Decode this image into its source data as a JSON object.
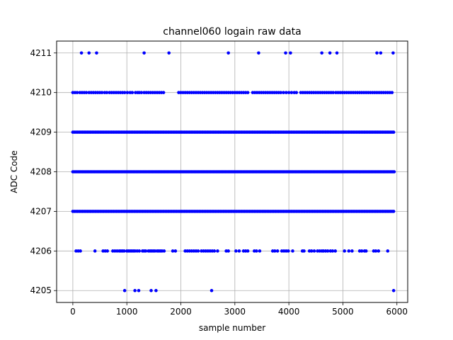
{
  "chart_data": {
    "type": "scatter",
    "title": "channel060 logain raw data",
    "xlabel": "sample number",
    "ylabel": "ADC Code",
    "xlim": [
      -300,
      6200
    ],
    "ylim": [
      4204.7,
      4211.3
    ],
    "xticks": [
      0,
      1000,
      2000,
      3000,
      4000,
      5000,
      6000
    ],
    "xtick_labels": [
      "0",
      "1000",
      "2000",
      "3000",
      "4000",
      "5000",
      "6000"
    ],
    "yticks": [
      4205,
      4206,
      4207,
      4208,
      4209,
      4210,
      4211
    ],
    "ytick_labels": [
      "4205",
      "4206",
      "4207",
      "4208",
      "4209",
      "4210",
      "4211"
    ],
    "grid": true,
    "marker_color": "#0000ff",
    "levels": [
      {
        "y": 4211,
        "x": [
          160,
          300,
          440,
          1320,
          1780,
          2880,
          3440,
          3940,
          4030,
          4610,
          4760,
          4890,
          5630,
          5700,
          5930
        ]
      },
      {
        "y": 4210,
        "x": [
          0,
          40,
          80,
          130,
          170,
          210,
          250,
          300,
          340,
          380,
          420,
          460,
          500,
          540,
          590,
          630,
          680,
          720,
          760,
          800,
          840,
          880,
          920,
          960,
          1010,
          1060,
          1100,
          1160,
          1200,
          1230,
          1270,
          1320,
          1360,
          1400,
          1440,
          1480,
          1520,
          1560,
          1600,
          1640,
          1680,
          1960,
          2000,
          2040,
          2080,
          2120,
          2160,
          2200,
          2240,
          2280,
          2320,
          2360,
          2400,
          2440,
          2480,
          2520,
          2560,
          2600,
          2640,
          2680,
          2720,
          2760,
          2800,
          2840,
          2880,
          2920,
          2960,
          3000,
          3040,
          3080,
          3120,
          3160,
          3200,
          3240,
          3330,
          3370,
          3410,
          3450,
          3490,
          3530,
          3570,
          3610,
          3650,
          3690,
          3730,
          3770,
          3810,
          3850,
          3900,
          3950,
          4000,
          4050,
          4100,
          4140,
          4220,
          4260,
          4300,
          4340,
          4380,
          4420,
          4460,
          4500,
          4540,
          4580,
          4620,
          4660,
          4700,
          4740,
          4780,
          4820,
          4870,
          4910,
          4950,
          4990,
          5030,
          5070,
          5110,
          5150,
          5190,
          5230,
          5270,
          5310,
          5350,
          5390,
          5430,
          5470,
          5510,
          5550,
          5590,
          5630,
          5670,
          5710,
          5750,
          5790,
          5830,
          5870,
          5910
        ]
      },
      {
        "y": 4209,
        "x": [
          0,
          30,
          60,
          90,
          120,
          150,
          180,
          210,
          240,
          270,
          300,
          330,
          360,
          390,
          420,
          450,
          480,
          510,
          540,
          570,
          600,
          630,
          660,
          690,
          720,
          750,
          780,
          810,
          840,
          870,
          900,
          930,
          960,
          990,
          1020,
          1050,
          1080,
          1110,
          1140,
          1170,
          1200,
          1230,
          1260,
          1290,
          1320,
          1350,
          1380,
          1410,
          1440,
          1470,
          1500,
          1530,
          1560,
          1590,
          1620,
          1650,
          1680,
          1710,
          1740,
          1770,
          1800,
          1830,
          1860,
          1890,
          1920,
          1950,
          1980,
          2010,
          2040,
          2070,
          2100,
          2130,
          2160,
          2190,
          2220,
          2250,
          2280,
          2310,
          2340,
          2370,
          2400,
          2430,
          2460,
          2490,
          2520,
          2550,
          2580,
          2610,
          2640,
          2670,
          2700,
          2730,
          2760,
          2790,
          2820,
          2850,
          2880,
          2910,
          2940,
          2970,
          3000,
          3030,
          3060,
          3090,
          3120,
          3150,
          3180,
          3210,
          3240,
          3270,
          3300,
          3330,
          3360,
          3390,
          3420,
          3450,
          3480,
          3510,
          3540,
          3570,
          3600,
          3630,
          3660,
          3690,
          3720,
          3750,
          3780,
          3810,
          3840,
          3870,
          3900,
          3930,
          3960,
          3990,
          4020,
          4050,
          4080,
          4110,
          4140,
          4170,
          4200,
          4230,
          4260,
          4290,
          4320,
          4350,
          4380,
          4410,
          4440,
          4470,
          4500,
          4530,
          4560,
          4590,
          4620,
          4650,
          4680,
          4710,
          4740,
          4770,
          4800,
          4830,
          4860,
          4890,
          4920,
          4950,
          4980,
          5010,
          5040,
          5070,
          5100,
          5130,
          5160,
          5190,
          5220,
          5250,
          5280,
          5310,
          5340,
          5370,
          5400,
          5430,
          5460,
          5490,
          5520,
          5550,
          5580,
          5610,
          5640,
          5670,
          5700,
          5730,
          5760,
          5790,
          5820,
          5850,
          5880,
          5910,
          5940
        ]
      },
      {
        "y": 4208,
        "x": [
          0,
          25,
          50,
          75,
          100,
          125,
          150,
          175,
          200,
          225,
          250,
          275,
          300,
          325,
          350,
          375,
          400,
          425,
          450,
          475,
          500,
          525,
          550,
          575,
          600,
          625,
          650,
          675,
          700,
          725,
          750,
          775,
          800,
          825,
          850,
          875,
          900,
          925,
          950,
          975,
          1000,
          1025,
          1050,
          1075,
          1100,
          1125,
          1150,
          1175,
          1200,
          1225,
          1250,
          1275,
          1300,
          1325,
          1350,
          1375,
          1400,
          1425,
          1450,
          1475,
          1500,
          1525,
          1550,
          1575,
          1600,
          1625,
          1650,
          1675,
          1700,
          1725,
          1750,
          1775,
          1800,
          1825,
          1850,
          1875,
          1900,
          1925,
          1950,
          1975,
          2000,
          2025,
          2050,
          2075,
          2100,
          2125,
          2150,
          2175,
          2200,
          2225,
          2250,
          2275,
          2300,
          2325,
          2350,
          2375,
          2400,
          2425,
          2450,
          2475,
          2500,
          2525,
          2550,
          2575,
          2600,
          2625,
          2650,
          2675,
          2700,
          2725,
          2750,
          2775,
          2800,
          2825,
          2850,
          2875,
          2900,
          2925,
          2950,
          2975,
          3000,
          3025,
          3050,
          3075,
          3100,
          3125,
          3150,
          3175,
          3200,
          3225,
          3250,
          3275,
          3300,
          3325,
          3350,
          3375,
          3400,
          3425,
          3450,
          3475,
          3500,
          3525,
          3550,
          3575,
          3600,
          3625,
          3650,
          3675,
          3700,
          3725,
          3750,
          3775,
          3800,
          3825,
          3850,
          3875,
          3900,
          3925,
          3950,
          3975,
          4000,
          4025,
          4050,
          4075,
          4100,
          4125,
          4150,
          4175,
          4200,
          4225,
          4250,
          4275,
          4300,
          4325,
          4350,
          4375,
          4400,
          4425,
          4450,
          4475,
          4500,
          4525,
          4550,
          4575,
          4600,
          4625,
          4650,
          4675,
          4700,
          4725,
          4750,
          4775,
          4800,
          4825,
          4850,
          4875,
          4900,
          4925,
          4950,
          4975,
          5000,
          5025,
          5050,
          5075,
          5100,
          5125,
          5150,
          5175,
          5200,
          5225,
          5250,
          5275,
          5300,
          5325,
          5350,
          5375,
          5400,
          5425,
          5450,
          5475,
          5500,
          5525,
          5550,
          5575,
          5600,
          5625,
          5650,
          5675,
          5700,
          5725,
          5750,
          5775,
          5800,
          5825,
          5850,
          5875,
          5900,
          5925,
          5950
        ]
      },
      {
        "y": 4207,
        "x": [
          0,
          30,
          60,
          90,
          120,
          150,
          180,
          210,
          240,
          270,
          300,
          330,
          360,
          390,
          420,
          450,
          480,
          510,
          540,
          570,
          600,
          630,
          660,
          690,
          720,
          750,
          780,
          810,
          840,
          870,
          900,
          930,
          960,
          990,
          1020,
          1050,
          1080,
          1110,
          1140,
          1170,
          1200,
          1230,
          1260,
          1290,
          1320,
          1350,
          1380,
          1410,
          1440,
          1470,
          1500,
          1530,
          1560,
          1590,
          1620,
          1650,
          1680,
          1710,
          1740,
          1770,
          1800,
          1830,
          1860,
          1890,
          1920,
          1950,
          1980,
          2010,
          2040,
          2070,
          2100,
          2130,
          2160,
          2190,
          2220,
          2250,
          2280,
          2310,
          2340,
          2370,
          2400,
          2430,
          2460,
          2490,
          2520,
          2550,
          2580,
          2610,
          2640,
          2670,
          2700,
          2730,
          2760,
          2790,
          2820,
          2850,
          2880,
          2910,
          2940,
          2970,
          3000,
          3030,
          3060,
          3090,
          3120,
          3150,
          3180,
          3210,
          3240,
          3270,
          3300,
          3330,
          3360,
          3390,
          3420,
          3450,
          3480,
          3510,
          3540,
          3570,
          3600,
          3630,
          3660,
          3690,
          3720,
          3750,
          3780,
          3810,
          3840,
          3870,
          3900,
          3930,
          3960,
          3990,
          4020,
          4050,
          4080,
          4110,
          4140,
          4170,
          4200,
          4230,
          4260,
          4290,
          4320,
          4350,
          4380,
          4410,
          4440,
          4470,
          4500,
          4530,
          4560,
          4590,
          4620,
          4650,
          4680,
          4710,
          4740,
          4770,
          4800,
          4830,
          4860,
          4890,
          4920,
          4950,
          4980,
          5010,
          5040,
          5070,
          5100,
          5130,
          5160,
          5190,
          5220,
          5250,
          5280,
          5310,
          5340,
          5370,
          5400,
          5430,
          5460,
          5490,
          5520,
          5550,
          5580,
          5610,
          5640,
          5670,
          5700,
          5730,
          5760,
          5790,
          5820,
          5850,
          5880,
          5910,
          5940
        ]
      },
      {
        "y": 4206,
        "x": [
          60,
          100,
          140,
          410,
          560,
          600,
          640,
          740,
          780,
          820,
          860,
          890,
          920,
          950,
          1000,
          1030,
          1060,
          1090,
          1120,
          1150,
          1190,
          1230,
          1290,
          1320,
          1350,
          1400,
          1430,
          1460,
          1490,
          1520,
          1560,
          1590,
          1620,
          1650,
          1690,
          1850,
          1900,
          2080,
          2120,
          2160,
          2200,
          2240,
          2280,
          2320,
          2380,
          2420,
          2460,
          2500,
          2540,
          2580,
          2620,
          2680,
          2840,
          2880,
          3020,
          3080,
          3160,
          3200,
          3240,
          3360,
          3400,
          3460,
          3700,
          3740,
          3790,
          3870,
          3910,
          3950,
          3990,
          4070,
          4250,
          4280,
          4380,
          4420,
          4470,
          4530,
          4570,
          4610,
          4640,
          4680,
          4720,
          4770,
          4810,
          4860,
          5030,
          5110,
          5170,
          5310,
          5350,
          5400,
          5430,
          5570,
          5610,
          5660,
          5830
        ]
      },
      {
        "y": 4205,
        "x": [
          960,
          1150,
          1220,
          1450,
          1540,
          2570,
          5940
        ]
      }
    ]
  }
}
